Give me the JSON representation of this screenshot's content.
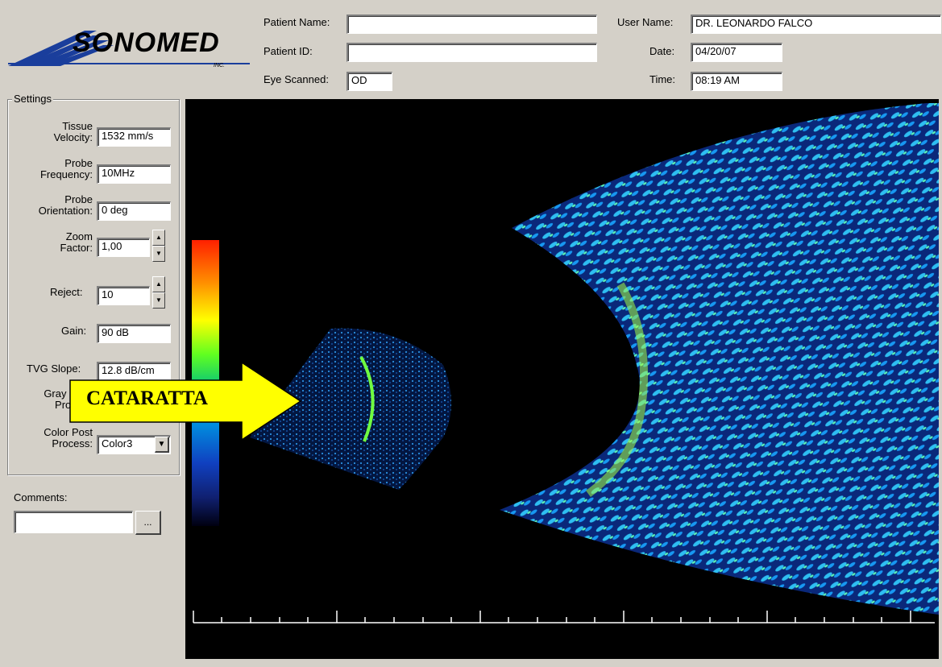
{
  "logo": {
    "text": "SONOMED",
    "suffix": "INC."
  },
  "header": {
    "patient_name_label": "Patient Name:",
    "patient_name_value": "",
    "patient_id_label": "Patient ID:",
    "patient_id_value": "",
    "eye_scanned_label": "Eye Scanned:",
    "eye_scanned_value": "OD",
    "user_name_label": "User Name:",
    "user_name_value": "DR. LEONARDO FALCO",
    "date_label": "Date:",
    "date_value": "04/20/07",
    "time_label": "Time:",
    "time_value": "08:19 AM"
  },
  "settings": {
    "title": "Settings",
    "tissue_velocity_label_1": "Tissue",
    "tissue_velocity_label_2": "Velocity:",
    "tissue_velocity_value": "1532 mm/s",
    "probe_frequency_label_1": "Probe",
    "probe_frequency_label_2": "Frequency:",
    "probe_frequency_value": "10MHz",
    "probe_orientation_label_1": "Probe",
    "probe_orientation_label_2": "Orientation:",
    "probe_orientation_value": "0 deg",
    "zoom_label_1": "Zoom",
    "zoom_label_2": "Factor:",
    "zoom_value": "1,00",
    "reject_label": "Reject:",
    "reject_value": "10",
    "gain_label": "Gain:",
    "gain_value": "90 dB",
    "tvg_label": "TVG Slope:",
    "tvg_value": "12.8 dB/cm",
    "gray_label_1": "Gray Po",
    "gray_label_2": "Proce",
    "color_label_1": "Color Post",
    "color_label_2": "Process:",
    "color_value": "Color3"
  },
  "comments": {
    "label": "Comments:",
    "value": "",
    "browse_label": "..."
  },
  "annotation": {
    "text": "CATARATTA",
    "color": "#ffff00"
  },
  "colors": {
    "background": "#d4d0c8",
    "scan_bg": "#000000",
    "accent": "#1a3e9c"
  },
  "icons": {
    "spin_up": "up-arrow-icon",
    "spin_down": "down-arrow-icon",
    "dropdown": "chevron-down-icon"
  }
}
